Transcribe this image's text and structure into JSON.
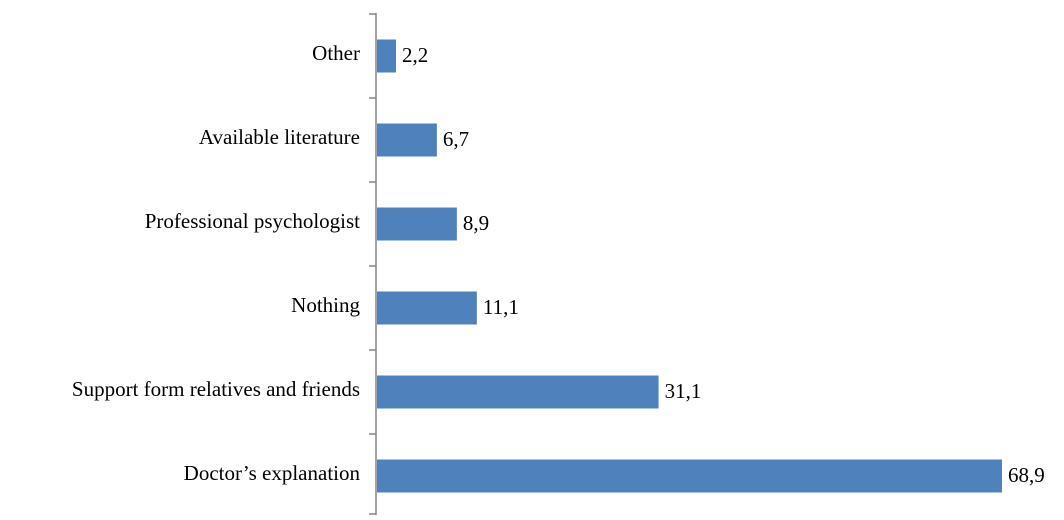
{
  "chart_data": {
    "type": "bar",
    "orientation": "horizontal",
    "categories": [
      "Other",
      "Available literature",
      "Professional psychologist",
      "Nothing",
      "Support form relatives and friends",
      "Doctor’s explanation"
    ],
    "values": [
      2.2,
      6.7,
      8.9,
      11.1,
      31.1,
      68.9
    ],
    "value_labels": [
      "2,2",
      "6,7",
      "8,9",
      "11,1",
      "31,1",
      "68,9"
    ],
    "color": "#4f81bd"
  }
}
